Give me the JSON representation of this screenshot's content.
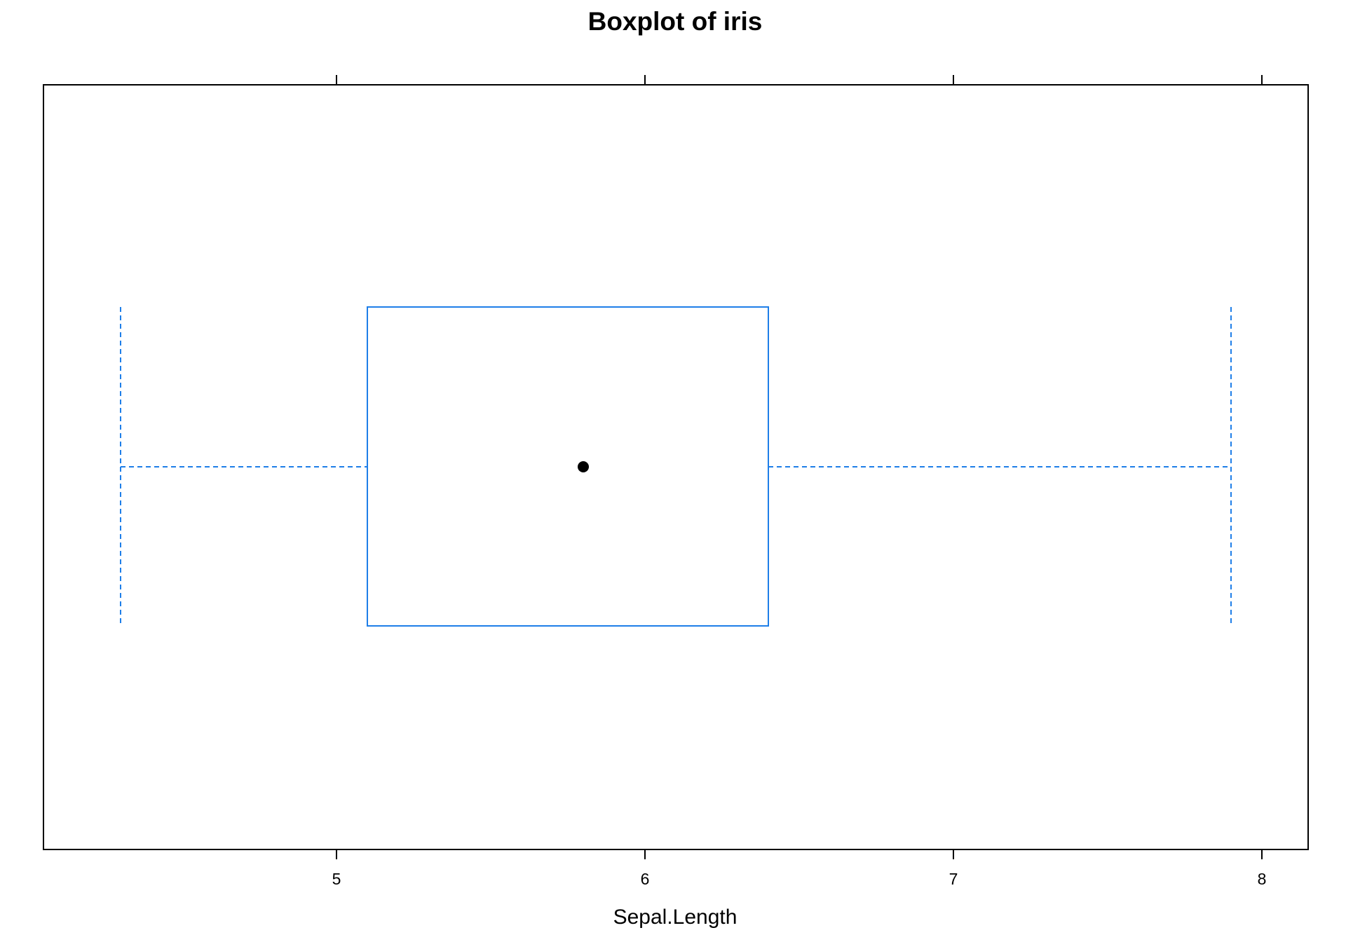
{
  "chart_data": {
    "type": "boxplot",
    "title": "Boxplot of iris",
    "xlabel": "Sepal.Length",
    "ylabel": "",
    "xlim": [
      4.05,
      8.15
    ],
    "ticks": [
      5,
      6,
      7,
      8
    ],
    "tick_labels": [
      "5",
      "6",
      "7",
      "8"
    ],
    "box": {
      "min": 4.3,
      "q1": 5.1,
      "median": 5.8,
      "q3": 6.4,
      "max": 7.9
    },
    "grid": false,
    "legend": "none",
    "colors": {
      "box": "#1e7ee8",
      "median_dot": "#000000",
      "frame": "#000000"
    }
  }
}
